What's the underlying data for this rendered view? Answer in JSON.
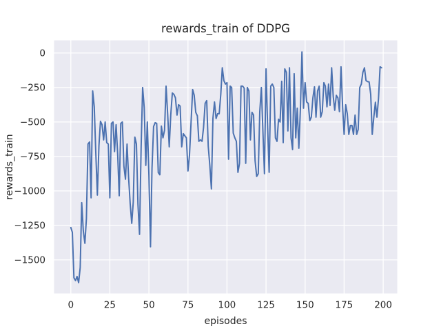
{
  "chart_data": {
    "type": "line",
    "title": "rewards_train of DDPG",
    "xlabel": "episodes",
    "ylabel": "rewards_train",
    "grid": true,
    "legend": null,
    "x_tick_values": [
      0,
      25,
      50,
      75,
      100,
      125,
      150,
      175,
      200
    ],
    "x_tick_labels": [
      "0",
      "25",
      "50",
      "75",
      "100",
      "125",
      "150",
      "175",
      "200"
    ],
    "y_tick_values": [
      0,
      -250,
      -500,
      -750,
      -1000,
      -1250,
      -1500
    ],
    "y_tick_labels": [
      "0",
      "−250",
      "−500",
      "−750",
      "−1000",
      "−1250",
      "−1500"
    ],
    "x_range": [
      -10.7,
      209.0
    ],
    "y_range": [
      -1743,
      92
    ],
    "colors": {
      "figure_background": "#ffffff",
      "plot_background": "#eaeaf2",
      "gridline": "#ffffff",
      "text": "#262626",
      "line": "#4c72b0"
    },
    "series": [
      {
        "name": "rewards_train",
        "color": "#4c72b0",
        "x_start": 0,
        "x_step": 1,
        "values": [
          -1265,
          -1300,
          -1630,
          -1650,
          -1620,
          -1665,
          -1555,
          -1085,
          -1290,
          -1380,
          -1200,
          -660,
          -645,
          -1050,
          -275,
          -390,
          -720,
          -1030,
          -670,
          -495,
          -520,
          -630,
          -500,
          -650,
          -660,
          -1050,
          -510,
          -500,
          -715,
          -520,
          -735,
          -1035,
          -510,
          -500,
          -820,
          -915,
          -660,
          -900,
          -1090,
          -1235,
          -1080,
          -610,
          -660,
          -1095,
          -1315,
          -685,
          -250,
          -395,
          -815,
          -500,
          -885,
          -1405,
          -835,
          -533,
          -505,
          -510,
          -867,
          -883,
          -530,
          -615,
          -560,
          -240,
          -440,
          -680,
          -450,
          -290,
          -300,
          -325,
          -450,
          -375,
          -385,
          -680,
          -585,
          -600,
          -615,
          -855,
          -740,
          -500,
          -265,
          -305,
          -430,
          -455,
          -640,
          -630,
          -640,
          -540,
          -365,
          -345,
          -675,
          -815,
          -985,
          -475,
          -355,
          -475,
          -440,
          -440,
          -300,
          -107,
          -200,
          -225,
          -215,
          -770,
          -240,
          -250,
          -580,
          -615,
          -640,
          -865,
          -800,
          -240,
          -240,
          -255,
          -800,
          -250,
          -275,
          -630,
          -430,
          -450,
          -780,
          -895,
          -875,
          -425,
          -250,
          -575,
          -875,
          -115,
          -540,
          -865,
          -240,
          -225,
          -250,
          -615,
          -640,
          -480,
          -500,
          -205,
          -650,
          -115,
          -140,
          -565,
          -107,
          -615,
          -700,
          -150,
          -615,
          -400,
          -690,
          -400,
          8,
          -400,
          -215,
          -355,
          -365,
          -490,
          -465,
          -325,
          -245,
          -465,
          -275,
          -240,
          -465,
          -425,
          -215,
          -240,
          -390,
          -225,
          -380,
          -107,
          -315,
          -415,
          -307,
          -325,
          -425,
          -100,
          -390,
          -590,
          -375,
          -440,
          -590,
          -525,
          -525,
          -590,
          -450,
          -590,
          -555,
          -250,
          -225,
          -140,
          -107,
          -200,
          -207,
          -210,
          -300,
          -590,
          -465,
          -357,
          -465,
          -330,
          -100,
          -107
        ]
      }
    ]
  }
}
